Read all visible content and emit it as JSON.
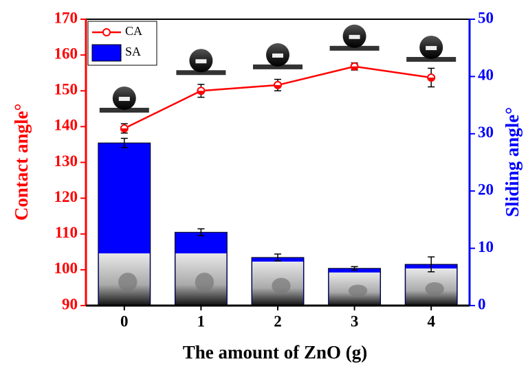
{
  "chart_data": {
    "type": "bar",
    "xlabel": "The amount of ZnO (g)",
    "ylabel": "Contact angle°",
    "y2label": "Sliding angle°",
    "categories": [
      "0",
      "1",
      "2",
      "3",
      "4"
    ],
    "ylim": [
      90,
      170
    ],
    "yticks": [
      90,
      100,
      110,
      120,
      130,
      140,
      150,
      160,
      170
    ],
    "y2lim": [
      0,
      50
    ],
    "y2ticks": [
      0,
      10,
      20,
      30,
      40,
      50
    ],
    "legend": "upper left",
    "series": [
      {
        "name": "CA",
        "type": "line",
        "color": "#ff0000",
        "values": [
          139.5,
          150.0,
          151.6,
          156.8,
          153.7
        ],
        "errors": [
          1.3,
          1.8,
          1.6,
          1.0,
          2.6
        ]
      },
      {
        "name": "SA",
        "type": "bar",
        "axis": "y2",
        "color": "#0000ff",
        "values": [
          28.4,
          12.8,
          8.4,
          6.5,
          7.2
        ],
        "errors": [
          0.8,
          0.6,
          0.6,
          0.3,
          1.3
        ]
      }
    ]
  }
}
